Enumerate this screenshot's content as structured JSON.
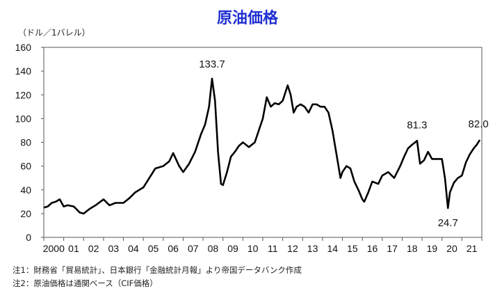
{
  "chart_data": {
    "type": "line",
    "title": "原油価格",
    "ylabel": "（ドル／1バレル）",
    "ylim": [
      0,
      160
    ],
    "yticks": [
      0,
      20,
      40,
      60,
      80,
      100,
      120,
      140,
      160
    ],
    "xlim": [
      2000,
      2022
    ],
    "x_tick_labels": [
      "2000",
      "01",
      "02",
      "03",
      "04",
      "05",
      "06",
      "07",
      "08",
      "09",
      "10",
      "11",
      "12",
      "13",
      "14",
      "15",
      "16",
      "17",
      "18",
      "19",
      "20",
      "21"
    ],
    "grid": false,
    "series": [
      {
        "x": [
          2000.0,
          2000.2,
          2000.4,
          2000.6,
          2000.8,
          2001.0,
          2001.2,
          2001.5,
          2001.8,
          2002.0,
          2002.3,
          2002.6,
          2003.0,
          2003.3,
          2003.6,
          2004.0,
          2004.3,
          2004.6,
          2005.0,
          2005.3,
          2005.6,
          2006.0,
          2006.3,
          2006.5,
          2006.8,
          2007.0,
          2007.3,
          2007.6,
          2007.9,
          2008.1,
          2008.3,
          2008.45,
          2008.6,
          2008.75,
          2008.9,
          2009.0,
          2009.2,
          2009.4,
          2009.6,
          2009.8,
          2010.0,
          2010.3,
          2010.6,
          2010.9,
          2011.0,
          2011.2,
          2011.4,
          2011.6,
          2011.8,
          2012.0,
          2012.25,
          2012.4,
          2012.55,
          2012.7,
          2012.9,
          2013.1,
          2013.3,
          2013.5,
          2013.7,
          2013.9,
          2014.1,
          2014.3,
          2014.5,
          2014.7,
          2014.9,
          2015.0,
          2015.2,
          2015.4,
          2015.6,
          2015.8,
          2016.0,
          2016.1,
          2016.3,
          2016.5,
          2016.8,
          2017.0,
          2017.3,
          2017.6,
          2017.9,
          2018.1,
          2018.3,
          2018.5,
          2018.75,
          2018.9,
          2019.1,
          2019.3,
          2019.5,
          2019.7,
          2019.9,
          2020.0,
          2020.15,
          2020.3,
          2020.4,
          2020.6,
          2020.8,
          2021.0,
          2021.2,
          2021.4,
          2021.6,
          2021.75,
          2021.9
        ],
        "values": [
          25,
          26,
          29,
          30,
          32,
          26,
          27,
          26,
          21,
          20,
          24,
          27,
          32,
          27,
          29,
          29,
          33,
          38,
          42,
          50,
          58,
          60,
          64,
          71,
          60,
          55,
          62,
          72,
          87,
          95,
          110,
          133.7,
          115,
          72,
          45,
          44,
          55,
          68,
          72,
          77,
          80,
          76,
          80,
          95,
          100,
          118,
          110,
          113,
          112,
          115,
          128,
          120,
          105,
          110,
          112,
          110,
          105,
          112,
          112,
          110,
          110,
          105,
          90,
          70,
          50,
          55,
          60,
          58,
          47,
          40,
          32,
          30,
          38,
          47,
          45,
          52,
          55,
          50,
          60,
          68,
          75,
          78,
          81.3,
          62,
          65,
          72,
          66,
          66,
          66,
          66,
          50,
          24.7,
          38,
          46,
          50,
          52,
          63,
          70,
          75,
          78,
          82.0
        ]
      }
    ],
    "annotations": [
      {
        "text": "133.7",
        "x": 2008.45,
        "y": 133.7
      },
      {
        "text": "81.3",
        "x": 2018.75,
        "y": 81.3
      },
      {
        "text": "24.7",
        "x": 2020.3,
        "y": 24.7
      },
      {
        "text": "82.0",
        "x": 2021.9,
        "y": 82.0
      }
    ]
  },
  "notes": [
    "注1：財務省「貿易統計」、日本銀行「金融統計月報」より帝国データバンク作成",
    "注2：原油価格は通関ベース（CIF価格）"
  ]
}
